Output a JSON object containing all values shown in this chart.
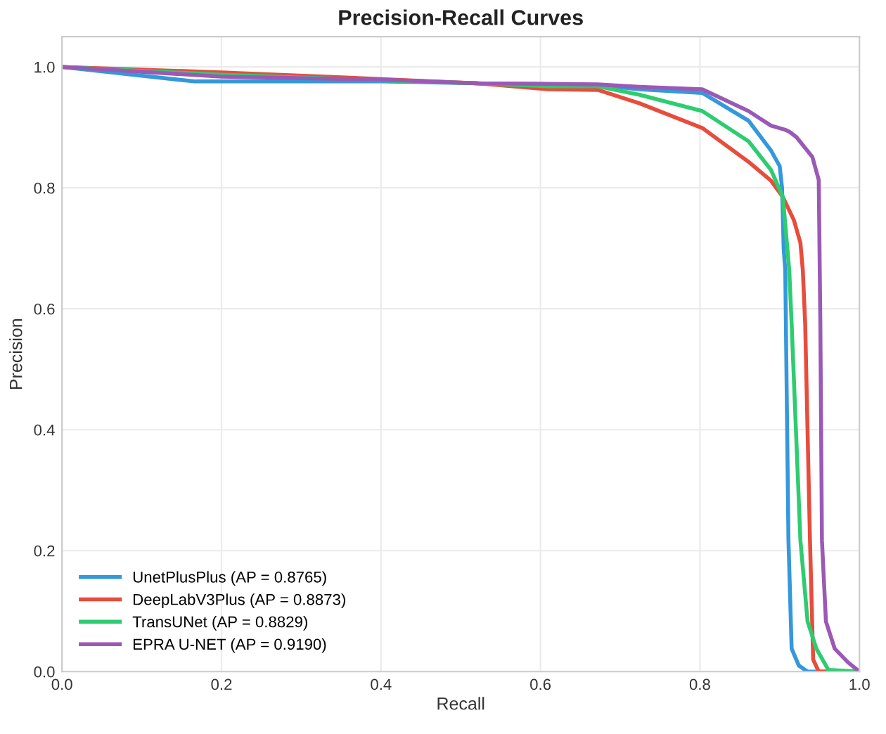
{
  "chart_data": {
    "type": "line",
    "title": "Precision-Recall Curves",
    "xlabel": "Recall",
    "ylabel": "Precision",
    "xlim": [
      0,
      1
    ],
    "ylim": [
      0,
      1.05
    ],
    "xticks": [
      {
        "value": 0,
        "label": "0.0"
      },
      0.2,
      0.4,
      0.6,
      0.8,
      {
        "value": 1,
        "label": "1.0"
      }
    ],
    "yticks": [
      {
        "value": 0,
        "label": "0.0"
      },
      0.2,
      0.4,
      0.6,
      0.8,
      {
        "value": 1,
        "label": "1.0"
      }
    ],
    "grid": true,
    "legend": "bottom left",
    "marker": "none",
    "line_style": "solid",
    "series": [
      {
        "name": "UnetPlusPlus (AP = 0.8765)",
        "color": "#3498db",
        "x": [
          0,
          0.166,
          0.4,
          0.521,
          0.61,
          0.672,
          0.724,
          0.803,
          0.861,
          0.889,
          0.9,
          0.903,
          0.905,
          0.907,
          0.911,
          0.915,
          0.924,
          0.935,
          1.0
        ],
        "values": [
          1.0,
          0.976,
          0.976,
          0.973,
          0.97,
          0.97,
          0.963,
          0.957,
          0.911,
          0.862,
          0.836,
          0.8,
          0.7,
          0.664,
          0.217,
          0.038,
          0.01,
          0.0,
          0.0
        ]
      },
      {
        "name": "DeepLabV3Plus (AP = 0.8873)",
        "color": "#e74c3c",
        "x": [
          0,
          0.2,
          0.4,
          0.521,
          0.61,
          0.672,
          0.724,
          0.803,
          0.861,
          0.889,
          0.904,
          0.918,
          0.926,
          0.929,
          0.932,
          0.938,
          0.942,
          0.949,
          1.0
        ],
        "values": [
          1.0,
          0.991,
          0.98,
          0.973,
          0.963,
          0.962,
          0.94,
          0.899,
          0.843,
          0.812,
          0.785,
          0.746,
          0.709,
          0.664,
          0.575,
          0.217,
          0.02,
          0.0,
          0.0
        ]
      },
      {
        "name": "TransUNet (AP = 0.8829)",
        "color": "#2ecc71",
        "x": [
          0,
          0.2,
          0.4,
          0.521,
          0.61,
          0.672,
          0.724,
          0.803,
          0.861,
          0.889,
          0.904,
          0.912,
          0.915,
          0.926,
          0.935,
          0.946,
          0.961,
          1.0
        ],
        "values": [
          1.0,
          0.987,
          0.978,
          0.973,
          0.968,
          0.968,
          0.954,
          0.927,
          0.877,
          0.83,
          0.785,
          0.664,
          0.575,
          0.217,
          0.083,
          0.038,
          0.003,
          0.0
        ]
      },
      {
        "name": "EPRA U-NET (AP = 0.9190)",
        "color": "#9b59b6",
        "x": [
          0,
          0.2,
          0.4,
          0.521,
          0.61,
          0.672,
          0.724,
          0.803,
          0.861,
          0.889,
          0.907,
          0.912,
          0.921,
          0.941,
          0.949,
          0.951,
          0.953,
          0.958,
          0.969,
          0.986,
          1.0
        ],
        "values": [
          1.0,
          0.984,
          0.979,
          0.973,
          0.972,
          0.971,
          0.967,
          0.963,
          0.927,
          0.903,
          0.896,
          0.893,
          0.884,
          0.851,
          0.813,
          0.575,
          0.217,
          0.083,
          0.038,
          0.015,
          0.0
        ]
      }
    ]
  }
}
